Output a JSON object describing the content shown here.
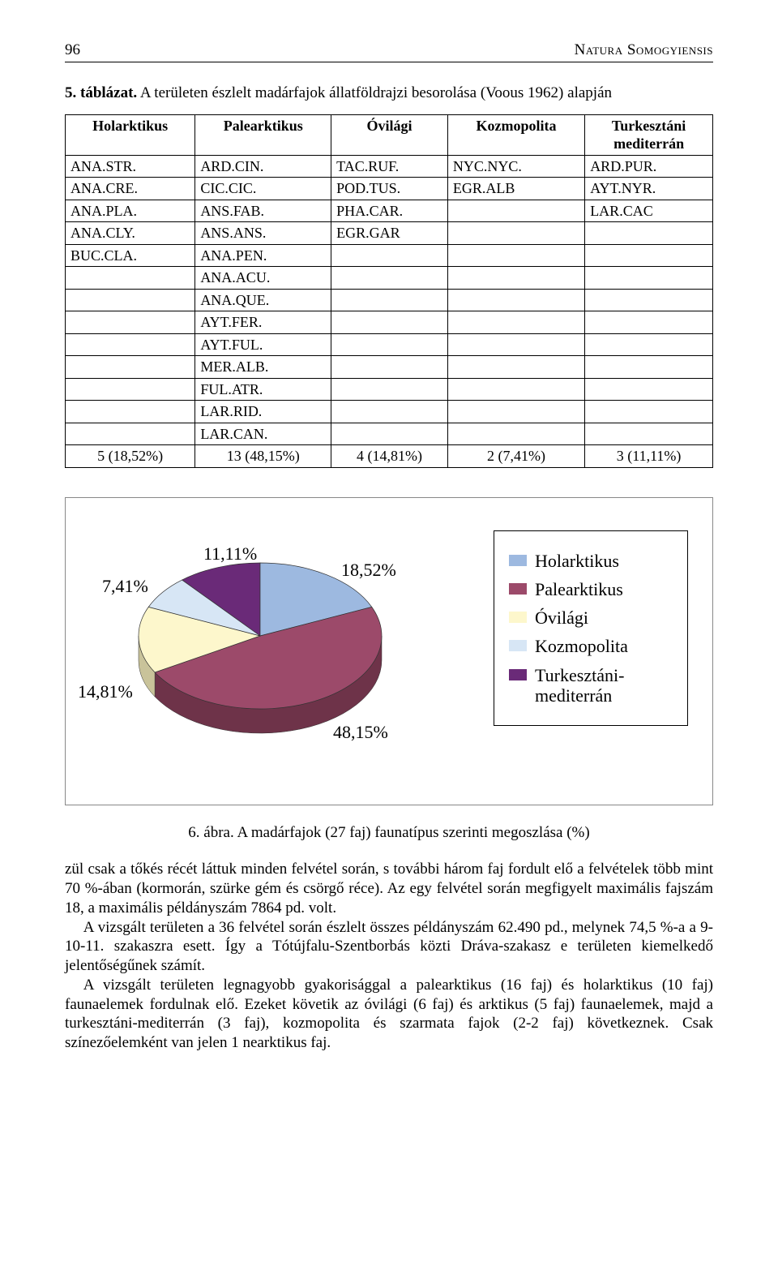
{
  "page_number": "96",
  "running_head": "Natura Somogyiensis",
  "table_caption_prefix": "5. táblázat.",
  "table_caption_text": " A területen észlelt madárfajok állatföldrajzi besorolása (Voous 1962) alapján",
  "table": {
    "headers": [
      "Holarktikus",
      "Palearktikus",
      "Óvilági",
      "Kozmopolita",
      "Turkesztáni mediterrán"
    ],
    "rows": [
      [
        "ANA.STR.",
        "ARD.CIN.",
        "TAC.RUF.",
        "NYC.NYC.",
        "ARD.PUR."
      ],
      [
        "ANA.CRE.",
        "CIC.CIC.",
        "POD.TUS.",
        "EGR.ALB",
        "AYT.NYR."
      ],
      [
        "ANA.PLA.",
        "ANS.FAB.",
        "PHA.CAR.",
        "",
        "LAR.CAC"
      ],
      [
        "ANA.CLY.",
        "ANS.ANS.",
        "EGR.GAR",
        "",
        ""
      ],
      [
        "BUC.CLA.",
        "ANA.PEN.",
        "",
        "",
        ""
      ],
      [
        "",
        "ANA.ACU.",
        "",
        "",
        ""
      ],
      [
        "",
        "ANA.QUE.",
        "",
        "",
        ""
      ],
      [
        "",
        "AYT.FER.",
        "",
        "",
        ""
      ],
      [
        "",
        "AYT.FUL.",
        "",
        "",
        ""
      ],
      [
        "",
        "MER.ALB.",
        "",
        "",
        ""
      ],
      [
        "",
        "FUL.ATR.",
        "",
        "",
        ""
      ],
      [
        "",
        "LAR.RID.",
        "",
        "",
        ""
      ],
      [
        "",
        "LAR.CAN.",
        "",
        "",
        ""
      ]
    ],
    "footer": [
      "5 (18,52%)",
      "13 (48,15%)",
      "4 (14,81%)",
      "2 (7,41%)",
      "3 (11,11%)"
    ]
  },
  "pie": {
    "type": "pie-3d",
    "background_color": "#ffffff",
    "radius": 150,
    "segments": [
      {
        "label": "Holarktikus",
        "value": 18.52,
        "color": "#9db9e0",
        "side": "#6f8db3",
        "text": "18,52%"
      },
      {
        "label": "Palearktikus",
        "value": 48.15,
        "color": "#9c4a6a",
        "side": "#6e3349",
        "text": "48,15%"
      },
      {
        "label": "Óvilági",
        "value": 14.81,
        "color": "#fdf7cc",
        "side": "#c9c39a",
        "text": "14,81%"
      },
      {
        "label": "Kozmopolita",
        "value": 7.41,
        "color": "#d7e6f5",
        "side": "#a6b6c6",
        "text": "7,41%"
      },
      {
        "label": "Turkesztáni-\nmediterrán",
        "value": 11.11,
        "color": "#6a2a78",
        "side": "#471c51",
        "text": "11,11%"
      }
    ],
    "legend_labels": [
      "Holarktikus",
      "Palearktikus",
      "Óvilági",
      "Kozmopolita",
      "Turkesztáni-\nmediterrán"
    ]
  },
  "fig_caption": "6. ábra. A madárfajok (27 faj) faunatípus szerinti megoszlása (%)",
  "body": [
    "zül csak a tőkés récét láttuk minden felvétel során, s további három faj fordult elő a felvételek több mint 70 %-ában (kormorán, szürke gém és csörgő réce). Az egy felvétel során megfigyelt  maximális fajszám 18, a maximális példányszám 7864 pd. volt.",
    "A vizsgált területen a 36 felvétel során észlelt összes példányszám 62.490 pd., melynek 74,5 %-a a 9-10-11. szakaszra esett. Így a Tótújfalu-Szentborbás közti Dráva-szakasz e területen kiemelkedő jelentőségűnek számít.",
    "A vizsgált területen legnagyobb gyakorisággal a palearktikus (16 faj) és holarktikus (10 faj) faunaelemek fordulnak elő. Ezeket követik az óvilági (6 faj) és arktikus (5 faj) faunaelemek, majd a turkesztáni-mediterrán (3 faj), kozmopolita és szarmata fajok (2-2 faj) következnek. Csak színezőelemként van jelen 1 nearktikus faj."
  ]
}
